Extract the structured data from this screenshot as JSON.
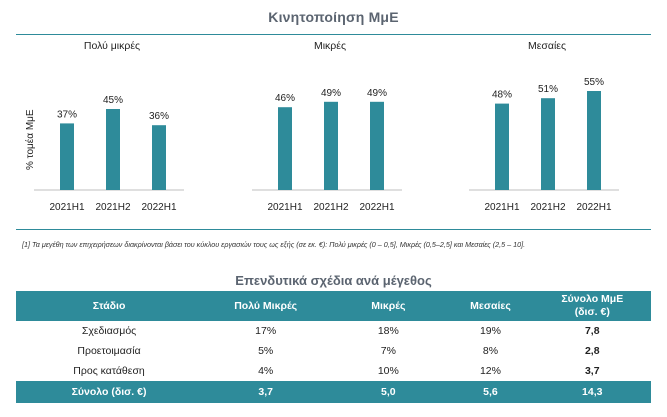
{
  "title": "Κινητοποίηση ΜμΕ",
  "ylabel": "% τομέα ΜμΕ",
  "chart_data": [
    {
      "type": "bar",
      "title": "Πολύ μικρές",
      "categories": [
        "2021H1",
        "2021H2",
        "2022H1"
      ],
      "values": [
        37,
        45,
        36
      ],
      "labels": [
        "37%",
        "45%",
        "36%"
      ],
      "ylim": [
        0,
        60
      ],
      "color": "#2e8b9a"
    },
    {
      "type": "bar",
      "title": "Μικρές",
      "categories": [
        "2021H1",
        "2021H2",
        "2022H1"
      ],
      "values": [
        46,
        49,
        49
      ],
      "labels": [
        "46%",
        "49%",
        "49%"
      ],
      "ylim": [
        0,
        60
      ],
      "color": "#2e8b9a"
    },
    {
      "type": "bar",
      "title": "Μεσαίες",
      "categories": [
        "2021H1",
        "2021H2",
        "2022H1"
      ],
      "values": [
        48,
        51,
        55
      ],
      "labels": [
        "48%",
        "51%",
        "55%"
      ],
      "ylim": [
        0,
        60
      ],
      "color": "#2e8b9a"
    }
  ],
  "footnote": "[1] Τα μεγέθη των επιχειρήσεων διακρίνονται βάσει του κύκλου εργασιών τους ως εξής (σε εκ. €): Πολύ μικρές (0 – 0,5], Μικρές (0,5–2,5] και Μεσαίες (2,5 – 10].",
  "table": {
    "title": "Επενδυτικά σχέδια ανά μέγεθος",
    "headers": [
      "Στάδιο",
      "Πολύ Μικρές",
      "Μικρές",
      "Μεσαίες",
      "Σύνολο ΜμΕ",
      "(δισ. €)"
    ],
    "rows": [
      [
        "Σχεδιασμός",
        "17%",
        "18%",
        "19%",
        "7,8"
      ],
      [
        "Προετοιμασία",
        "5%",
        "7%",
        "8%",
        "2,8"
      ],
      [
        "Προς κατάθεση",
        "4%",
        "10%",
        "12%",
        "3,7"
      ]
    ],
    "total": [
      "Σύνολο (δισ. €)",
      "3,7",
      "5,0",
      "5,6",
      "14,3"
    ]
  }
}
